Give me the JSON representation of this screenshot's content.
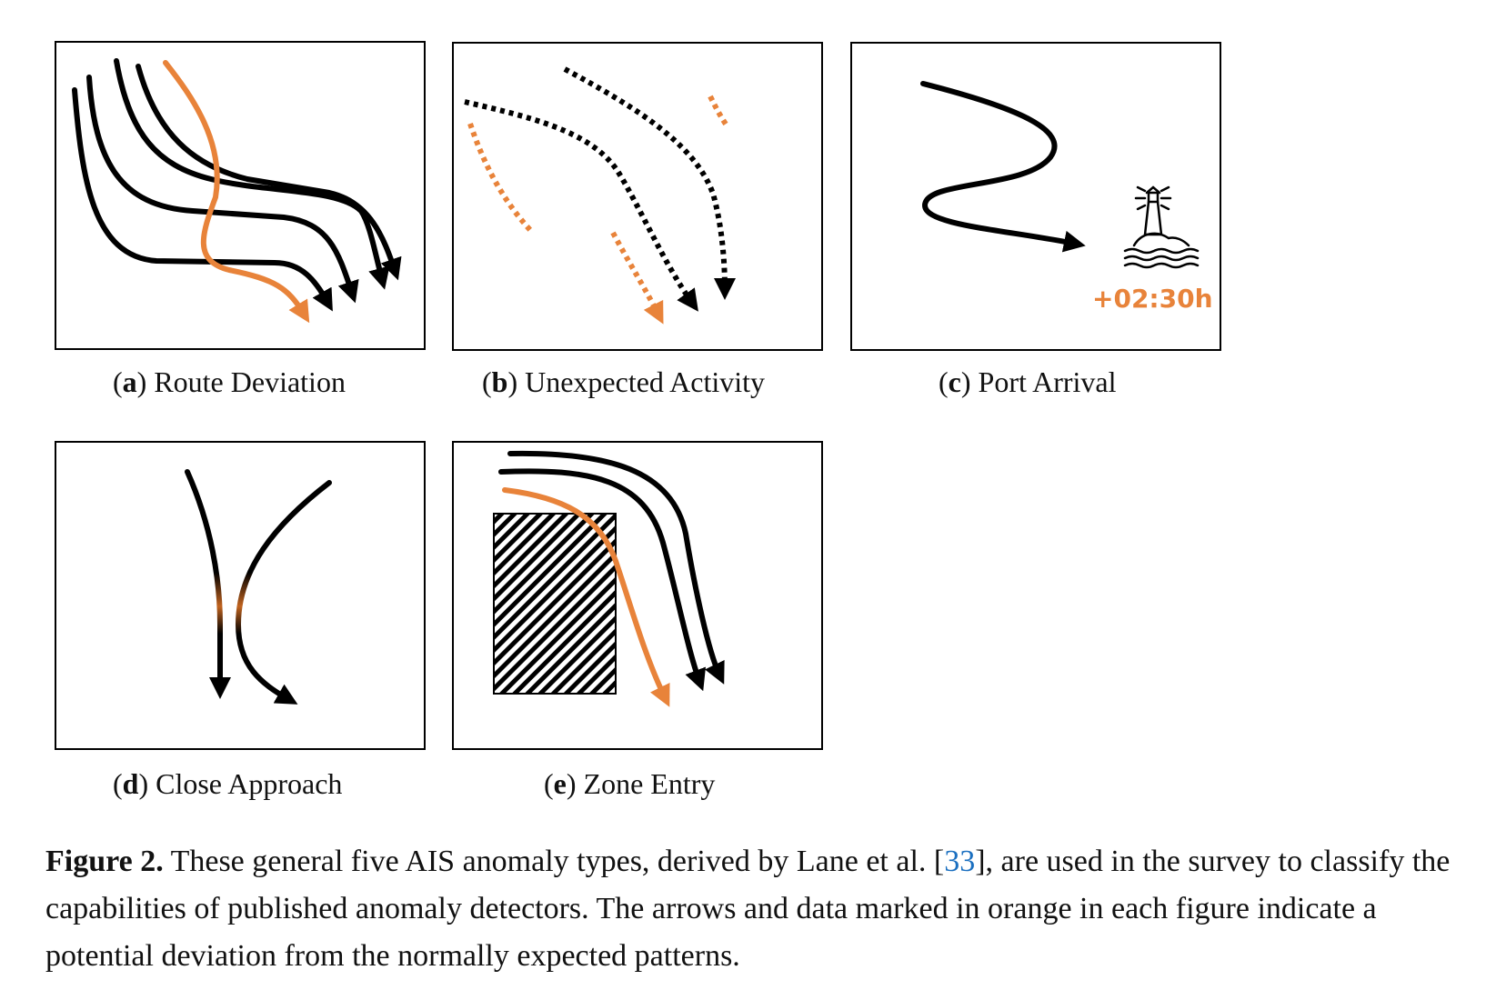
{
  "colors": {
    "accent": "#e8833a",
    "normal": "#000000",
    "citation": "#1a6fc0"
  },
  "panels": {
    "a": {
      "letter": "a",
      "title": "Route Deviation"
    },
    "b": {
      "letter": "b",
      "title": "Unexpected Activity"
    },
    "c": {
      "letter": "c",
      "title": "Port Arrival",
      "delay_label": "+02:30h",
      "icon": "lighthouse-icon"
    },
    "d": {
      "letter": "d",
      "title": "Close Approach"
    },
    "e": {
      "letter": "e",
      "title": "Zone Entry"
    }
  },
  "caption": {
    "label": "Figure 2.",
    "text_before": " These general five AIS anomaly types, derived by Lane et al. [",
    "citation": "33",
    "text_after": "], are used in the survey to classify the capabilities of published anomaly detectors. The arrows and data marked in orange in each figure indicate a potential deviation from the normally expected patterns."
  }
}
